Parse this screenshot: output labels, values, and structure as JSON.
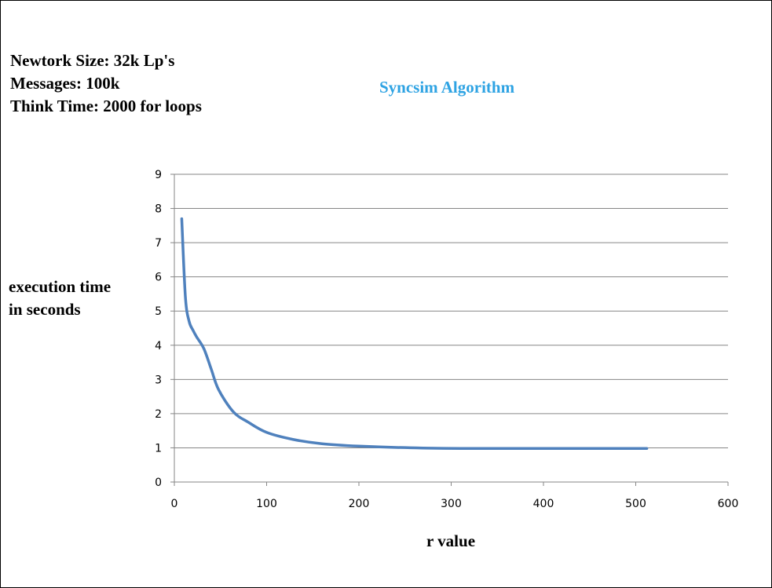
{
  "info_lines": [
    "Newtork Size: 32k Lp's",
    "Messages: 100k",
    "Think Time: 2000 for loops"
  ],
  "chart_data": {
    "type": "line",
    "title": "Syncsim Algorithm",
    "xlabel": "r value",
    "ylabel_lines": [
      "execution time",
      "in seconds"
    ],
    "xlim": [
      0,
      600
    ],
    "ylim": [
      0,
      9
    ],
    "x_ticks": [
      0,
      100,
      200,
      300,
      400,
      500,
      600
    ],
    "y_ticks": [
      0,
      1,
      2,
      3,
      4,
      5,
      6,
      7,
      8,
      9
    ],
    "grid": true,
    "series": [
      {
        "color": "#4f81bd",
        "x": [
          8,
          12,
          16,
          20,
          24,
          32,
          40,
          48,
          64,
          80,
          100,
          128,
          160,
          200,
          256,
          320,
          400,
          512
        ],
        "y": [
          7.7,
          5.4,
          4.7,
          4.45,
          4.25,
          3.9,
          3.3,
          2.7,
          2.05,
          1.75,
          1.45,
          1.25,
          1.12,
          1.05,
          1.0,
          0.98,
          0.98,
          0.98
        ]
      }
    ]
  }
}
